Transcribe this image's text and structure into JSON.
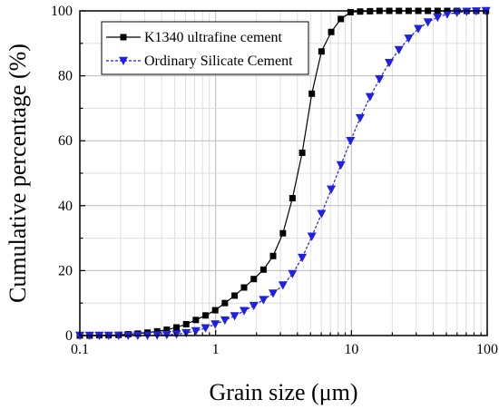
{
  "chart_data": {
    "type": "line",
    "title": "",
    "xlabel": "Grain size  (μm)",
    "ylabel": "Cumulative percentage  (%)",
    "x_scale": "log",
    "xlim": [
      0.1,
      100
    ],
    "ylim": [
      0,
      100
    ],
    "x_tick_labels": [
      "0.1",
      "1",
      "10",
      "100"
    ],
    "y_tick_labels": [
      "0",
      "20",
      "40",
      "60",
      "80",
      "100"
    ],
    "grid": true,
    "legend_position": "top-left",
    "series": [
      {
        "name": "K1340 ultrafine cement",
        "color": "#000000",
        "marker": "square",
        "x": [
          0.1,
          0.118,
          0.139,
          0.163,
          0.193,
          0.227,
          0.267,
          0.315,
          0.371,
          0.437,
          0.515,
          0.607,
          0.715,
          0.843,
          0.993,
          1.17,
          1.38,
          1.62,
          1.91,
          2.25,
          2.65,
          3.13,
          3.68,
          4.34,
          5.11,
          6.02,
          7.1,
          8.36,
          9.85,
          11.6,
          13.7,
          16.1,
          19.0,
          22.4,
          26.4,
          31.1,
          36.6,
          43.1,
          50.8,
          59.9,
          70.6,
          83.1,
          98.0
        ],
        "y": [
          0.0,
          0.0,
          0.1,
          0.1,
          0.2,
          0.4,
          0.6,
          0.9,
          1.3,
          1.8,
          2.5,
          3.5,
          4.8,
          6.2,
          7.8,
          10.0,
          12.3,
          14.8,
          17.4,
          20.3,
          24.5,
          31.5,
          42.3,
          56.3,
          74.5,
          87.5,
          93.5,
          97.5,
          99.6,
          99.8,
          99.9,
          100,
          100,
          100,
          100,
          100,
          100,
          100,
          100,
          100,
          100,
          100,
          100
        ]
      },
      {
        "name": "Ordinary Silicate Cement",
        "color": "#1f1fe6",
        "marker": "triangle-down",
        "x": [
          0.1,
          0.118,
          0.139,
          0.163,
          0.193,
          0.227,
          0.267,
          0.315,
          0.371,
          0.437,
          0.515,
          0.607,
          0.715,
          0.843,
          0.993,
          1.17,
          1.38,
          1.62,
          1.91,
          2.25,
          2.65,
          3.13,
          3.68,
          4.34,
          5.11,
          6.02,
          7.1,
          8.36,
          9.85,
          11.6,
          13.7,
          16.1,
          19.0,
          22.4,
          26.4,
          31.1,
          36.6,
          43.1,
          50.8,
          59.9,
          70.6,
          83.1,
          98.0
        ],
        "y": [
          0.0,
          0.0,
          0.0,
          0.0,
          0.0,
          0.0,
          0.0,
          0.0,
          0.1,
          0.2,
          0.4,
          0.8,
          1.4,
          2.3,
          3.5,
          4.7,
          6.0,
          7.6,
          9.2,
          11.0,
          13.0,
          15.5,
          19.0,
          24.0,
          30.5,
          37.5,
          45.0,
          52.5,
          60.0,
          67.0,
          73.5,
          79.0,
          84.0,
          88.0,
          91.5,
          94.5,
          96.5,
          98.0,
          99.0,
          99.5,
          99.8,
          99.9,
          100
        ]
      }
    ]
  }
}
